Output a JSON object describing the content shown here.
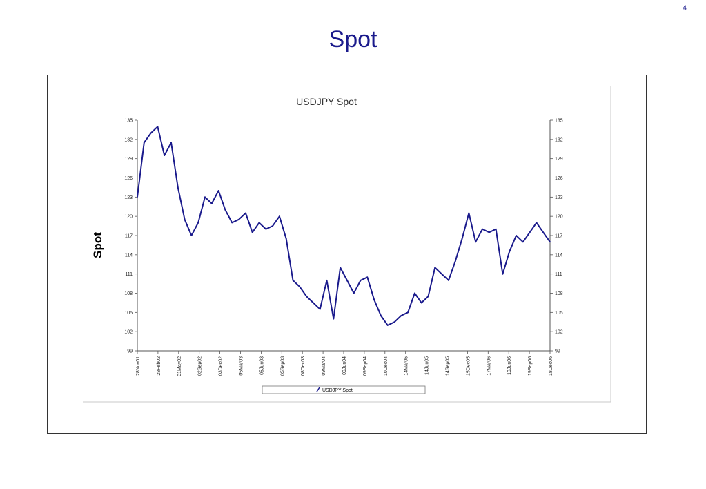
{
  "page_number": "4",
  "slide_title": "Spot",
  "side_label": "Spot",
  "colors": {
    "line": "#1a1a8c",
    "title": "#1a1a8c",
    "frame": "#333333"
  },
  "chart_data": {
    "type": "line",
    "title": "USDJPY Spot",
    "xlabel": "",
    "ylabel": "Spot",
    "ylim": [
      99,
      135
    ],
    "yticks": [
      "99",
      "102",
      "105",
      "108",
      "111",
      "114",
      "117",
      "120",
      "123",
      "126",
      "129",
      "132",
      "135"
    ],
    "xticks": [
      "28Nov01",
      "28Feb02",
      "31May02",
      "02Sep02",
      "03Dec02",
      "05Mar03",
      "05Jun03",
      "05Sep03",
      "08Dec03",
      "09Mar04",
      "09Jun04",
      "09Sep04",
      "10Dec04",
      "14Mar05",
      "14Jun05",
      "14Sep05",
      "15Dec05",
      "17Mar06",
      "19Jun06",
      "19Sep06",
      "18Dec06"
    ],
    "grid": false,
    "legend": "bottom",
    "series": [
      {
        "name": "USDJPY Spot",
        "x": [
          "28Nov01",
          "Dec01",
          "Jan02",
          "28Feb02",
          "Mar02",
          "Apr02",
          "31May02",
          "Jun02",
          "Jul02",
          "Aug02",
          "02Sep02",
          "Oct02",
          "Nov02",
          "03Dec02",
          "Jan03",
          "Feb03",
          "05Mar03",
          "Apr03",
          "May03",
          "05Jun03",
          "Jul03",
          "Aug03",
          "05Sep03",
          "Oct03",
          "Nov03",
          "08Dec03",
          "Jan04",
          "Feb04",
          "09Mar04",
          "Apr04",
          "May04",
          "09Jun04",
          "Jul04",
          "Aug04",
          "09Sep04",
          "Oct04",
          "Nov04",
          "10Dec04",
          "Jan05",
          "Feb05",
          "14Mar05",
          "Apr05",
          "May05",
          "14Jun05",
          "Jul05",
          "Aug05",
          "14Sep05",
          "Oct05",
          "Nov05",
          "15Dec05",
          "Jan06",
          "Feb06",
          "17Mar06",
          "Apr06",
          "May06",
          "19Jun06",
          "Jul06",
          "Aug06",
          "19Sep06",
          "Oct06",
          "Nov06",
          "18Dec06"
        ],
        "values": [
          123.0,
          131.5,
          133.0,
          134.0,
          129.5,
          131.5,
          124.5,
          119.5,
          117.0,
          119.0,
          123.0,
          122.0,
          124.0,
          121.0,
          119.0,
          119.5,
          120.5,
          117.5,
          119.0,
          118.0,
          118.5,
          120.0,
          116.5,
          110.0,
          109.0,
          107.5,
          106.5,
          105.5,
          110.0,
          104.0,
          112.0,
          110.0,
          108.0,
          110.0,
          110.5,
          107.0,
          104.5,
          103.0,
          103.5,
          104.5,
          105.0,
          108.0,
          106.5,
          107.5,
          112.0,
          111.0,
          110.0,
          113.0,
          116.5,
          120.5,
          116.0,
          118.0,
          117.5,
          118.0,
          111.0,
          114.5,
          117.0,
          116.0,
          117.5,
          119.0,
          117.5,
          116.0
        ]
      }
    ]
  }
}
